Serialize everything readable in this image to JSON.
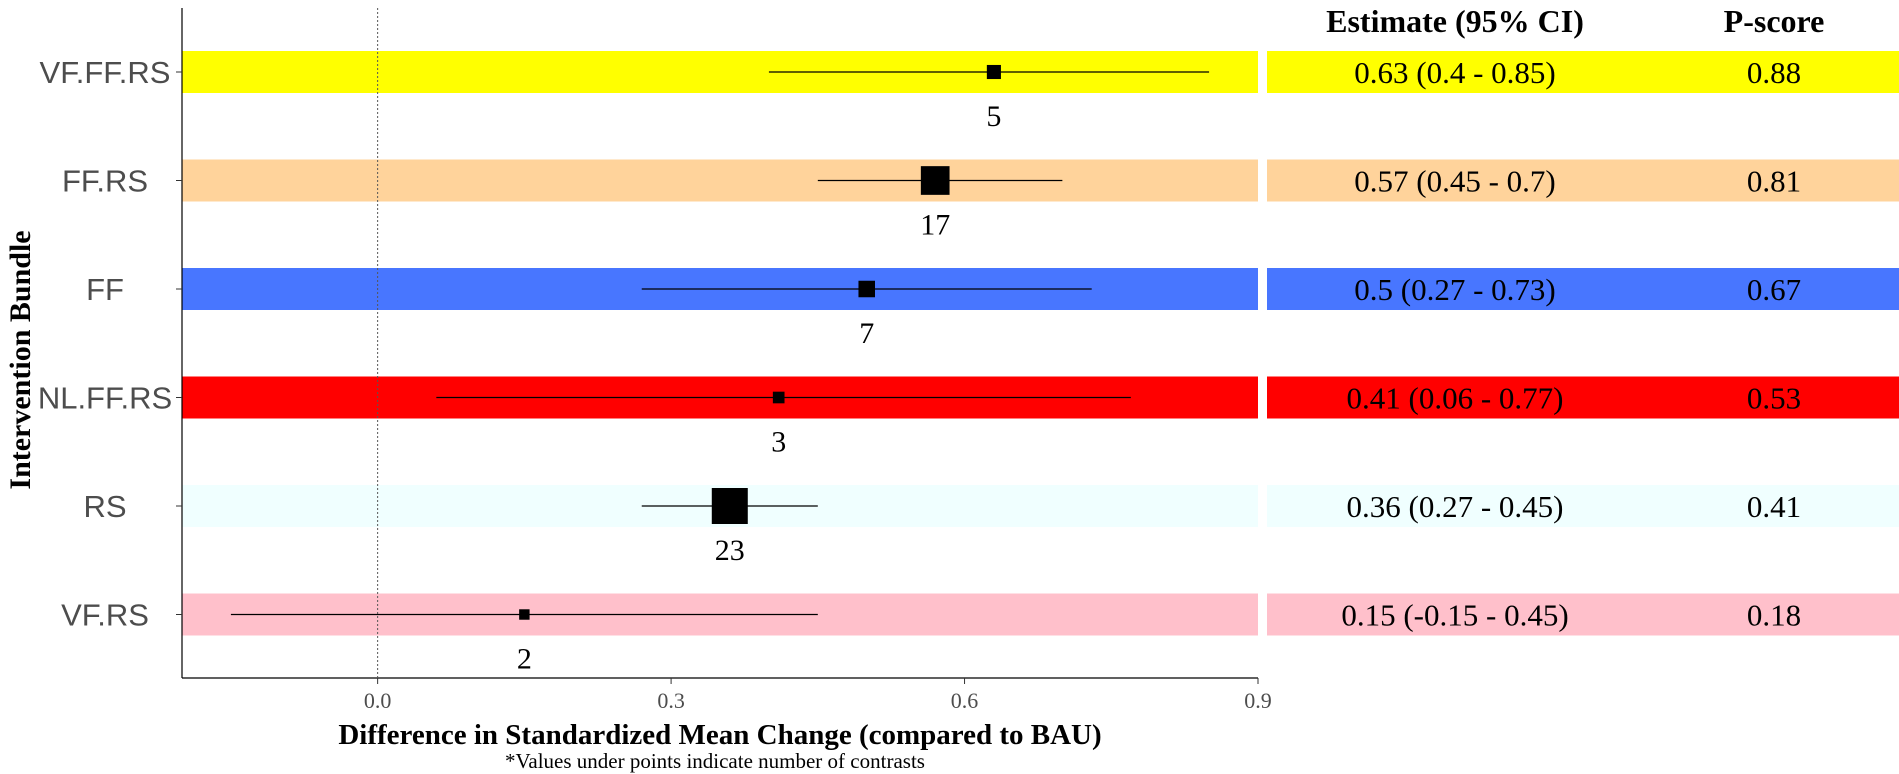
{
  "chart_data": {
    "type": "forest",
    "ylabel": "Intervention Bundle",
    "xlabel": "Difference in Standardized Mean Change (compared to BAU)",
    "footnote": "*Values under points indicate number of contrasts",
    "xlim": [
      -0.2,
      0.9
    ],
    "xticks": [
      0.0,
      0.3,
      0.6,
      0.9
    ],
    "xtick_labels": [
      "0.0",
      "0.3",
      "0.6",
      "0.9"
    ],
    "reference_line": 0.0,
    "table_headers": {
      "estimate": "Estimate (95% CI)",
      "pscore": "P-score"
    },
    "rows": [
      {
        "label": "VF.FF.RS",
        "estimate": 0.63,
        "lower": 0.4,
        "upper": 0.85,
        "n": "5",
        "ci_text": "0.63 (0.4 - 0.85)",
        "pscore": "0.88",
        "color": "#FFFF00"
      },
      {
        "label": "FF.RS",
        "estimate": 0.57,
        "lower": 0.45,
        "upper": 0.7,
        "n": "17",
        "ci_text": "0.57 (0.45 - 0.7)",
        "pscore": "0.81",
        "color": "#FFD39B"
      },
      {
        "label": "FF",
        "estimate": 0.5,
        "lower": 0.27,
        "upper": 0.73,
        "n": "7",
        "ci_text": "0.5 (0.27 - 0.73)",
        "pscore": "0.67",
        "color": "#4876FF"
      },
      {
        "label": "NL.FF.RS",
        "estimate": 0.41,
        "lower": 0.06,
        "upper": 0.77,
        "n": "3",
        "ci_text": "0.41 (0.06 - 0.77)",
        "pscore": "0.53",
        "color": "#FF0000"
      },
      {
        "label": "RS",
        "estimate": 0.36,
        "lower": 0.27,
        "upper": 0.45,
        "n": "23",
        "ci_text": "0.36 (0.27 - 0.45)",
        "pscore": "0.41",
        "color": "#F0FFFF"
      },
      {
        "label": "VF.RS",
        "estimate": 0.15,
        "lower": -0.15,
        "upper": 0.45,
        "n": "2",
        "ci_text": "0.15 (-0.15 - 0.45)",
        "pscore": "0.18",
        "color": "#FFC0CB"
      }
    ]
  }
}
